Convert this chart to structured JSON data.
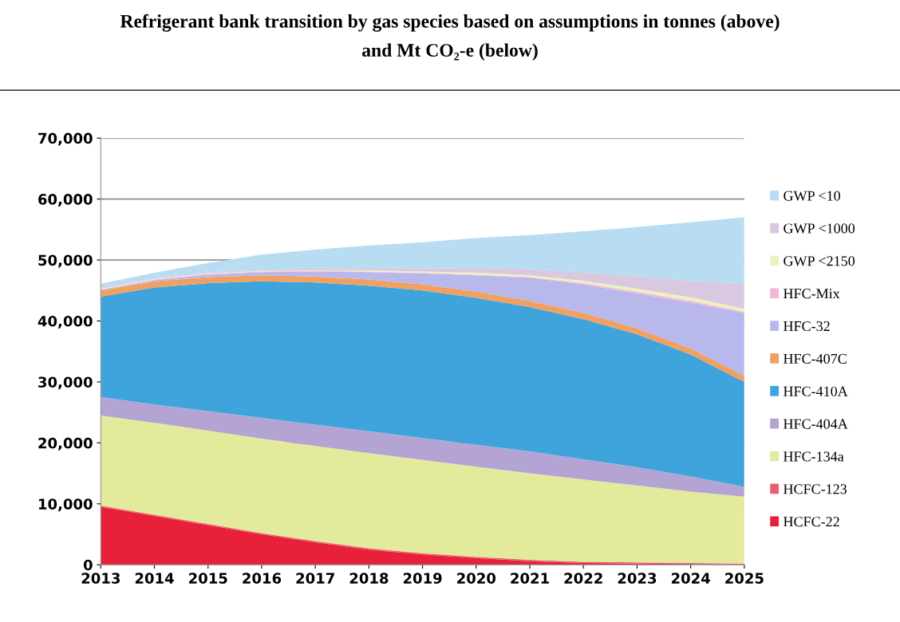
{
  "chart_data": {
    "type": "area",
    "stacked": true,
    "title": "Refrigerant bank transition by gas species based on assumptions in tonnes (above)\nand Mt CO₂-e (below)",
    "categories": [
      "2013",
      "2014",
      "2015",
      "2016",
      "2017",
      "2018",
      "2019",
      "2020",
      "2021",
      "2022",
      "2023",
      "2024",
      "2025"
    ],
    "ylim": [
      0,
      70000
    ],
    "yticks": [
      {
        "value": 0,
        "label": "0"
      },
      {
        "value": 10000,
        "label": "10,000"
      },
      {
        "value": 20000,
        "label": "20,000"
      },
      {
        "value": 30000,
        "label": "30,000"
      },
      {
        "value": 40000,
        "label": "40,000"
      },
      {
        "value": 50000,
        "label": "50,000"
      },
      {
        "value": 60000,
        "label": "60,000"
      },
      {
        "value": 70000,
        "label": "70,000"
      }
    ],
    "grid": "y",
    "legend": "right",
    "series": [
      {
        "name": "HCFC-22",
        "color": "#e8203a",
        "values": [
          9500,
          8000,
          6500,
          5000,
          3700,
          2500,
          1700,
          1100,
          600,
          300,
          200,
          100,
          0
        ]
      },
      {
        "name": "HCFC-123",
        "color": "#e86070",
        "values": [
          200,
          200,
          200,
          200,
          200,
          200,
          200,
          200,
          200,
          200,
          200,
          200,
          200
        ]
      },
      {
        "name": "HFC-134a",
        "color": "#e4ea9c",
        "values": [
          14800,
          15100,
          15300,
          15500,
          15600,
          15600,
          15300,
          14800,
          14200,
          13500,
          12600,
          11700,
          11000
        ]
      },
      {
        "name": "HFC-404A",
        "color": "#b4a4d4",
        "values": [
          3000,
          3000,
          3200,
          3400,
          3500,
          3600,
          3600,
          3600,
          3600,
          3300,
          3000,
          2500,
          1600
        ]
      },
      {
        "name": "HFC-410A",
        "color": "#3fa3dc",
        "values": [
          16500,
          19200,
          21000,
          22400,
          23300,
          23900,
          24200,
          24100,
          23700,
          23000,
          21800,
          20000,
          17200
        ]
      },
      {
        "name": "HFC-407C",
        "color": "#f0a060",
        "values": [
          1000,
          1000,
          1000,
          1000,
          1000,
          1000,
          1000,
          1000,
          1000,
          1000,
          1000,
          1000,
          1000
        ]
      },
      {
        "name": "HFC-32",
        "color": "#b8b8ec",
        "values": [
          100,
          200,
          400,
          500,
          800,
          1200,
          1800,
          2700,
          3800,
          4700,
          5700,
          7500,
          10300
        ]
      },
      {
        "name": "HFC-Mix",
        "color": "#f0b8d8",
        "values": [
          100,
          100,
          100,
          100,
          100,
          100,
          100,
          100,
          100,
          200,
          300,
          300,
          200
        ]
      },
      {
        "name": "GWP <2150",
        "color": "#eef0c0",
        "values": [
          100,
          100,
          100,
          100,
          100,
          200,
          200,
          300,
          300,
          400,
          500,
          600,
          500
        ]
      },
      {
        "name": "GWP <1000",
        "color": "#d8c8e0",
        "values": [
          200,
          200,
          200,
          200,
          300,
          400,
          500,
          800,
          1000,
          1400,
          2000,
          2700,
          4000
        ]
      },
      {
        "name": "GWP <10",
        "color": "#b8dcf2",
        "values": [
          600,
          800,
          1500,
          2500,
          3100,
          3700,
          4300,
          4900,
          5600,
          6700,
          8100,
          9600,
          11000
        ]
      }
    ]
  }
}
